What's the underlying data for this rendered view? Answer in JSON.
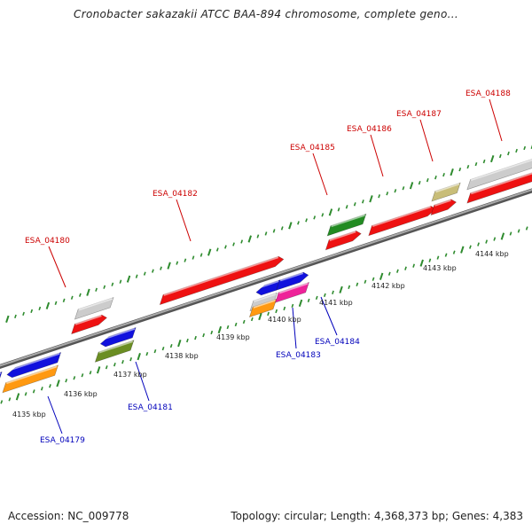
{
  "title": "Cronobacter sakazakii ATCC BAA-894 chromosome, complete geno...",
  "footer": {
    "accession": "Accession: NC_009778",
    "summary": "Topology: circular; Length: 4,368,373 bp; Genes: 4,383"
  },
  "colors": {
    "forward_label": "#cc0000",
    "reverse_label": "#0000bb",
    "backbone": "#888888",
    "ticks": "#2e8b2e",
    "red": "#ee1111",
    "blue": "#1111dd",
    "orange": "#ff9911",
    "olive": "#6b8e23",
    "green": "#228b22",
    "gray": "#cccccc",
    "magenta": "#ee2299",
    "khaki": "#c8bd78"
  },
  "scale_labels": [
    "4135 kbp",
    "4136 kbp",
    "4137 kbp",
    "4138 kbp",
    "4139 kbp",
    "4140 kbp",
    "4141 kbp",
    "4142 kbp",
    "4143 kbp",
    "4144 kbp"
  ],
  "gene_labels": [
    {
      "name": "ESA_04180",
      "strand": "forward"
    },
    {
      "name": "ESA_04182",
      "strand": "forward"
    },
    {
      "name": "ESA_04185",
      "strand": "forward"
    },
    {
      "name": "ESA_04186",
      "strand": "forward"
    },
    {
      "name": "ESA_04187",
      "strand": "forward"
    },
    {
      "name": "ESA_04188",
      "strand": "forward"
    },
    {
      "name": "ESA_04179",
      "strand": "reverse"
    },
    {
      "name": "ESA_04181",
      "strand": "reverse"
    },
    {
      "name": "ESA_04183",
      "strand": "reverse"
    },
    {
      "name": "ESA_04184",
      "strand": "reverse"
    }
  ],
  "features": [
    {
      "id": "f-gray-1",
      "track": 2,
      "color": "gray"
    },
    {
      "id": "f-red-1",
      "track": 1,
      "color": "red",
      "arrow": "forward"
    },
    {
      "id": "f-red-2",
      "track": 1,
      "color": "red",
      "arrow": "forward"
    },
    {
      "id": "f-green-1",
      "track": 2,
      "color": "green"
    },
    {
      "id": "f-red-3",
      "track": 1,
      "color": "red",
      "arrow": "forward"
    },
    {
      "id": "f-red-4",
      "track": 1,
      "color": "red",
      "arrow": "forward"
    },
    {
      "id": "f-khaki-1",
      "track": 2,
      "color": "khaki"
    },
    {
      "id": "f-red-5",
      "track": 1,
      "color": "red",
      "arrow": "forward"
    },
    {
      "id": "f-gray-2",
      "track": 2,
      "color": "gray"
    },
    {
      "id": "f-red-6",
      "track": 1,
      "color": "red",
      "arrow": "forward"
    },
    {
      "id": "f-blue-0",
      "track": -1,
      "color": "blue",
      "arrow": "reverse"
    },
    {
      "id": "f-blue-1",
      "track": -1,
      "color": "blue",
      "arrow": "reverse"
    },
    {
      "id": "f-orange-1",
      "track": -2,
      "color": "orange"
    },
    {
      "id": "f-blue-2",
      "track": -1,
      "color": "blue",
      "arrow": "reverse"
    },
    {
      "id": "f-olive-1",
      "track": -2,
      "color": "olive"
    },
    {
      "id": "f-blue-3",
      "track": -1,
      "color": "blue",
      "arrow": "reverse"
    },
    {
      "id": "f-blue-4",
      "track": -1,
      "color": "blue",
      "arrow": "forward"
    },
    {
      "id": "f-gray-3",
      "track": -2,
      "color": "gray"
    },
    {
      "id": "f-orange-2",
      "track": -3,
      "color": "orange"
    },
    {
      "id": "f-magenta-1",
      "track": -2,
      "color": "magenta"
    }
  ]
}
